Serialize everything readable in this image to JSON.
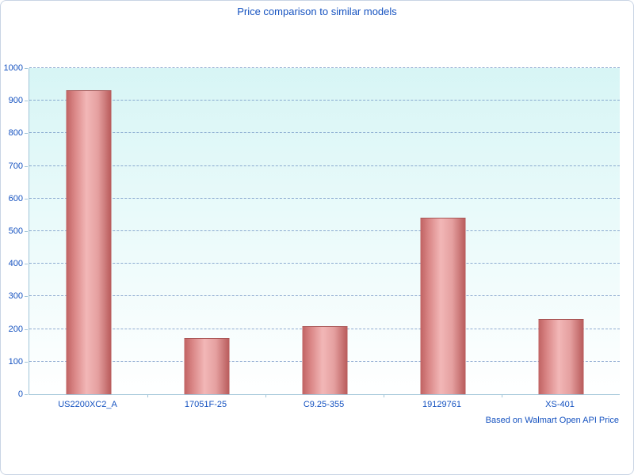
{
  "title": "Price comparison to similar models",
  "footer": "Based on Walmart Open API Price",
  "colors": {
    "text_blue": "#1552c0",
    "axis": "#a0c4d8",
    "grid": "#6b8fc2",
    "bar_light": "#f2b7b7",
    "bar_dark": "#b85a5a",
    "plot_bg_top": "#d7f5f5",
    "plot_bg_bottom": "#ffffff"
  },
  "chart_data": {
    "type": "bar",
    "title": "Price comparison to similar models",
    "categories": [
      "US2200XC2_A",
      "17051F-25",
      "C9.25-355",
      "19129761",
      "XS-401"
    ],
    "values": [
      930,
      170,
      207,
      540,
      227
    ],
    "xlabel": "",
    "ylabel": "",
    "ylim": [
      0,
      1000
    ],
    "ytick_step": 100,
    "grid": "horizontal-dashed",
    "legend": "none",
    "annotation": "Based on Walmart Open API Price"
  }
}
